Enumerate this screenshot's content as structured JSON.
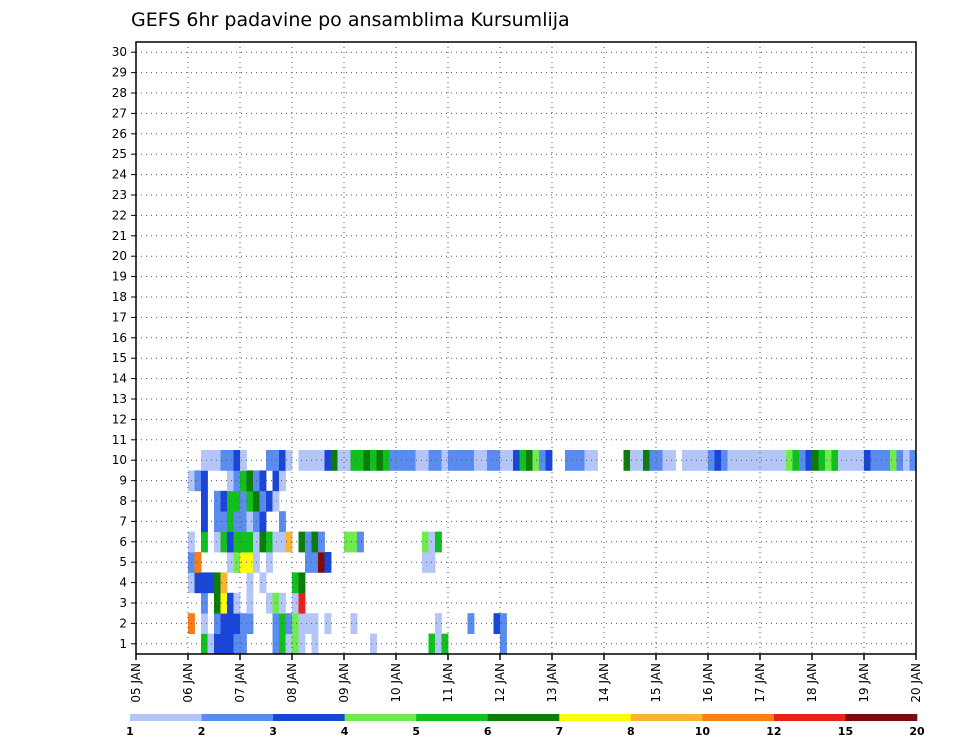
{
  "chart_data": {
    "type": "heatmap",
    "title": "GEFS 6hr padavine po ansamblima Kursumlija",
    "xlabel": "",
    "ylabel": "",
    "x_ticks": [
      "05 JAN",
      "06 JAN",
      "07 JAN",
      "08 JAN",
      "09 JAN",
      "10 JAN",
      "11 JAN",
      "12 JAN",
      "13 JAN",
      "14 JAN",
      "15 JAN",
      "16 JAN",
      "17 JAN",
      "18 JAN",
      "19 JAN",
      "20 JAN"
    ],
    "y_ticks": [
      "1",
      "2",
      "3",
      "4",
      "5",
      "6",
      "7",
      "8",
      "9",
      "10",
      "11",
      "12",
      "13",
      "14",
      "15",
      "16",
      "17",
      "18",
      "19",
      "20",
      "21",
      "22",
      "23",
      "24",
      "25",
      "26",
      "27",
      "28",
      "29",
      "30"
    ],
    "x_range": [
      "05 JAN 00z",
      "20 JAN 00z"
    ],
    "time_step_hours": 6,
    "y_range": [
      0,
      30
    ],
    "grid": true,
    "legend_position": "bottom",
    "colorbar": {
      "labels": [
        "1",
        "2",
        "3",
        "4",
        "5",
        "6",
        "7",
        "8",
        "10",
        "12",
        "15",
        "20"
      ],
      "colors": [
        "#b3c6f7",
        "#5a8cf0",
        "#1a45d9",
        "#6fea4f",
        "#11c01e",
        "#0c7d0b",
        "#fbfb0c",
        "#fbb432",
        "#f97c14",
        "#e8201e",
        "#7e0a0a"
      ]
    },
    "note": "levels: 0=1-2, 1=2-3, 2=3-4, 3=4-5, 4=5-6, 5=6-7, 6=7-8, 7=8-10, 8=10-12, 9=12-15, 10=15-20; column = 6h step index from 05 JAN 00z",
    "cells": [
      [
        1,
        10,
        4
      ],
      [
        1,
        11,
        0
      ],
      [
        1,
        12,
        2
      ],
      [
        1,
        13,
        2
      ],
      [
        1,
        14,
        2
      ],
      [
        1,
        15,
        1
      ],
      [
        1,
        16,
        1
      ],
      [
        1,
        21,
        1
      ],
      [
        1,
        22,
        4
      ],
      [
        1,
        23,
        0
      ],
      [
        1,
        24,
        3
      ],
      [
        1,
        25,
        0
      ],
      [
        1,
        27,
        0
      ],
      [
        1,
        36,
        0
      ],
      [
        1,
        45,
        4
      ],
      [
        1,
        46,
        0
      ],
      [
        1,
        47,
        4
      ],
      [
        1,
        56,
        1
      ],
      [
        2,
        8,
        8
      ],
      [
        2,
        10,
        0
      ],
      [
        2,
        12,
        1
      ],
      [
        2,
        13,
        2
      ],
      [
        2,
        14,
        2
      ],
      [
        2,
        15,
        2
      ],
      [
        2,
        16,
        1
      ],
      [
        2,
        17,
        1
      ],
      [
        2,
        21,
        1
      ],
      [
        2,
        22,
        4
      ],
      [
        2,
        23,
        1
      ],
      [
        2,
        24,
        3
      ],
      [
        2,
        25,
        0
      ],
      [
        2,
        26,
        0
      ],
      [
        2,
        27,
        0
      ],
      [
        2,
        29,
        0
      ],
      [
        2,
        33,
        0
      ],
      [
        2,
        46,
        0
      ],
      [
        2,
        51,
        1
      ],
      [
        2,
        55,
        2
      ],
      [
        2,
        56,
        1
      ],
      [
        3,
        10,
        1
      ],
      [
        3,
        12,
        5
      ],
      [
        3,
        13,
        6
      ],
      [
        3,
        14,
        2
      ],
      [
        3,
        15,
        0
      ],
      [
        3,
        17,
        0
      ],
      [
        3,
        20,
        0
      ],
      [
        3,
        21,
        3
      ],
      [
        3,
        22,
        0
      ],
      [
        3,
        24,
        0
      ],
      [
        3,
        25,
        9
      ],
      [
        4,
        8,
        0
      ],
      [
        4,
        9,
        2
      ],
      [
        4,
        10,
        2
      ],
      [
        4,
        11,
        2
      ],
      [
        4,
        12,
        5
      ],
      [
        4,
        13,
        7
      ],
      [
        4,
        17,
        0
      ],
      [
        4,
        19,
        0
      ],
      [
        4,
        24,
        4
      ],
      [
        4,
        25,
        5
      ],
      [
        5,
        8,
        1
      ],
      [
        5,
        9,
        8
      ],
      [
        5,
        14,
        0
      ],
      [
        5,
        15,
        3
      ],
      [
        5,
        16,
        6
      ],
      [
        5,
        17,
        6
      ],
      [
        5,
        18,
        0
      ],
      [
        5,
        20,
        0
      ],
      [
        5,
        26,
        1
      ],
      [
        5,
        27,
        1
      ],
      [
        5,
        28,
        10
      ],
      [
        5,
        29,
        2
      ],
      [
        5,
        44,
        0
      ],
      [
        5,
        45,
        0
      ],
      [
        6,
        8,
        0
      ],
      [
        6,
        10,
        4
      ],
      [
        6,
        12,
        0
      ],
      [
        6,
        13,
        4
      ],
      [
        6,
        14,
        2
      ],
      [
        6,
        15,
        4
      ],
      [
        6,
        16,
        4
      ],
      [
        6,
        17,
        4
      ],
      [
        6,
        18,
        0
      ],
      [
        6,
        19,
        5
      ],
      [
        6,
        20,
        4
      ],
      [
        6,
        21,
        0
      ],
      [
        6,
        22,
        0
      ],
      [
        6,
        23,
        7
      ],
      [
        6,
        25,
        5
      ],
      [
        6,
        26,
        1
      ],
      [
        6,
        27,
        5
      ],
      [
        6,
        28,
        1
      ],
      [
        6,
        32,
        3
      ],
      [
        6,
        33,
        3
      ],
      [
        6,
        34,
        1
      ],
      [
        6,
        44,
        3
      ],
      [
        6,
        45,
        0
      ],
      [
        6,
        46,
        4
      ],
      [
        7,
        10,
        2
      ],
      [
        7,
        12,
        1
      ],
      [
        7,
        13,
        1
      ],
      [
        7,
        14,
        4
      ],
      [
        7,
        15,
        1
      ],
      [
        7,
        16,
        1
      ],
      [
        7,
        17,
        0
      ],
      [
        7,
        18,
        1
      ],
      [
        7,
        19,
        2
      ],
      [
        7,
        22,
        1
      ],
      [
        8,
        10,
        2
      ],
      [
        8,
        12,
        1
      ],
      [
        8,
        13,
        2
      ],
      [
        8,
        14,
        4
      ],
      [
        8,
        15,
        4
      ],
      [
        8,
        16,
        1
      ],
      [
        8,
        17,
        4
      ],
      [
        8,
        18,
        5
      ],
      [
        8,
        19,
        1
      ],
      [
        8,
        20,
        2
      ],
      [
        8,
        21,
        0
      ],
      [
        9,
        8,
        0
      ],
      [
        9,
        9,
        1
      ],
      [
        9,
        10,
        2
      ],
      [
        9,
        14,
        0
      ],
      [
        9,
        15,
        1
      ],
      [
        9,
        16,
        4
      ],
      [
        9,
        17,
        5
      ],
      [
        9,
        18,
        1
      ],
      [
        9,
        19,
        2
      ],
      [
        9,
        21,
        2
      ],
      [
        9,
        22,
        0
      ],
      [
        10,
        10,
        0
      ],
      [
        10,
        11,
        0
      ],
      [
        10,
        12,
        0
      ],
      [
        10,
        13,
        1
      ],
      [
        10,
        14,
        1
      ],
      [
        10,
        15,
        2
      ],
      [
        10,
        16,
        0
      ],
      [
        10,
        20,
        1
      ],
      [
        10,
        21,
        1
      ],
      [
        10,
        22,
        2
      ],
      [
        10,
        23,
        0
      ],
      [
        10,
        25,
        0
      ],
      [
        10,
        26,
        0
      ],
      [
        10,
        27,
        0
      ],
      [
        10,
        28,
        0
      ],
      [
        10,
        29,
        2
      ],
      [
        10,
        30,
        5
      ],
      [
        10,
        31,
        0
      ],
      [
        10,
        32,
        0
      ],
      [
        10,
        33,
        4
      ],
      [
        10,
        34,
        4
      ],
      [
        10,
        35,
        5
      ],
      [
        10,
        36,
        4
      ],
      [
        10,
        37,
        5
      ],
      [
        10,
        38,
        4
      ],
      [
        10,
        39,
        1
      ],
      [
        10,
        40,
        1
      ],
      [
        10,
        41,
        1
      ],
      [
        10,
        42,
        1
      ],
      [
        10,
        43,
        0
      ],
      [
        10,
        44,
        0
      ],
      [
        10,
        45,
        1
      ],
      [
        10,
        46,
        1
      ],
      [
        10,
        47,
        0
      ],
      [
        10,
        48,
        1
      ],
      [
        10,
        49,
        1
      ],
      [
        10,
        50,
        1
      ],
      [
        10,
        51,
        1
      ],
      [
        10,
        52,
        0
      ],
      [
        10,
        53,
        0
      ],
      [
        10,
        54,
        1
      ],
      [
        10,
        55,
        1
      ],
      [
        10,
        56,
        0
      ],
      [
        10,
        57,
        0
      ],
      [
        10,
        58,
        2
      ],
      [
        10,
        59,
        4
      ],
      [
        10,
        60,
        5
      ],
      [
        10,
        61,
        3
      ],
      [
        10,
        62,
        1
      ],
      [
        10,
        63,
        2
      ],
      [
        10,
        66,
        1
      ],
      [
        10,
        67,
        1
      ],
      [
        10,
        68,
        1
      ],
      [
        10,
        69,
        0
      ],
      [
        10,
        70,
        0
      ],
      [
        10,
        75,
        5
      ],
      [
        10,
        76,
        0
      ],
      [
        10,
        77,
        0
      ],
      [
        10,
        78,
        5
      ],
      [
        10,
        79,
        1
      ],
      [
        10,
        80,
        1
      ],
      [
        10,
        81,
        0
      ],
      [
        10,
        82,
        0
      ],
      [
        10,
        84,
        0
      ],
      [
        10,
        85,
        0
      ],
      [
        10,
        86,
        0
      ],
      [
        10,
        87,
        0
      ],
      [
        10,
        88,
        1
      ],
      [
        10,
        89,
        2
      ],
      [
        10,
        90,
        1
      ],
      [
        10,
        91,
        0
      ],
      [
        10,
        92,
        0
      ],
      [
        10,
        93,
        0
      ],
      [
        10,
        94,
        0
      ],
      [
        10,
        95,
        0
      ],
      [
        10,
        96,
        0
      ],
      [
        10,
        97,
        0
      ],
      [
        10,
        98,
        0
      ],
      [
        10,
        99,
        0
      ],
      [
        10,
        100,
        3
      ],
      [
        10,
        101,
        4
      ],
      [
        10,
        102,
        1
      ],
      [
        10,
        103,
        2
      ],
      [
        10,
        104,
        5
      ],
      [
        10,
        105,
        4
      ],
      [
        10,
        106,
        3
      ],
      [
        10,
        107,
        4
      ],
      [
        10,
        108,
        0
      ],
      [
        10,
        109,
        0
      ],
      [
        10,
        110,
        0
      ],
      [
        10,
        111,
        0
      ],
      [
        10,
        112,
        2
      ],
      [
        10,
        113,
        1
      ],
      [
        10,
        114,
        1
      ],
      [
        10,
        115,
        1
      ],
      [
        10,
        116,
        3
      ],
      [
        10,
        117,
        1
      ],
      [
        10,
        118,
        0
      ],
      [
        10,
        119,
        1
      ]
    ]
  }
}
